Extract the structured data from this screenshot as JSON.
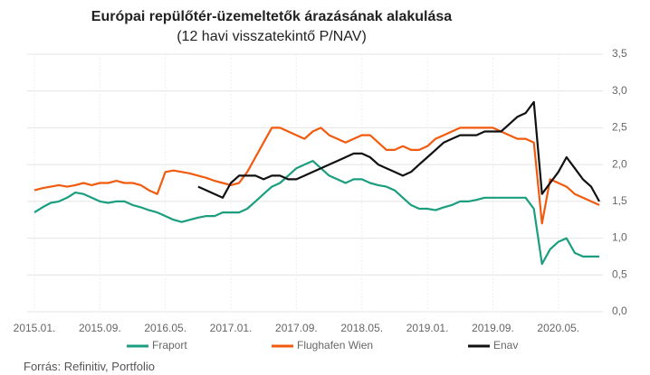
{
  "chart_data": {
    "type": "line",
    "title": "Európai repülőtér-üzemeltetők árazásának alakulása",
    "subtitle": "(12 havi visszatekintő P/NAV)",
    "source": "Forrás: Refinitiv, Portfolio",
    "categories": [
      "2015.01.",
      null,
      null,
      null,
      null,
      null,
      null,
      null,
      "2015.09.",
      null,
      null,
      null,
      null,
      null,
      null,
      null,
      "2016.05.",
      null,
      null,
      null,
      null,
      null,
      null,
      null,
      "2017.01.",
      null,
      null,
      null,
      null,
      null,
      null,
      null,
      "2017.09.",
      null,
      null,
      null,
      null,
      null,
      null,
      null,
      "2018.05.",
      null,
      null,
      null,
      null,
      null,
      null,
      null,
      "2019.01.",
      null,
      null,
      null,
      null,
      null,
      null,
      null,
      "2019.09.",
      null,
      null,
      null,
      null,
      null,
      null,
      null,
      "2020.05.",
      null,
      null,
      null,
      null,
      null
    ],
    "series": [
      {
        "name": "Fraport",
        "color": "#1a9e7f",
        "values": [
          1.35,
          1.42,
          1.48,
          1.5,
          1.55,
          1.62,
          1.6,
          1.55,
          1.5,
          1.48,
          1.5,
          1.5,
          1.45,
          1.42,
          1.38,
          1.35,
          1.3,
          1.25,
          1.22,
          1.25,
          1.28,
          1.3,
          1.3,
          1.35,
          1.35,
          1.35,
          1.4,
          1.5,
          1.6,
          1.7,
          1.75,
          1.85,
          1.95,
          2.0,
          2.05,
          1.95,
          1.85,
          1.8,
          1.75,
          1.8,
          1.8,
          1.75,
          1.72,
          1.7,
          1.65,
          1.55,
          1.45,
          1.4,
          1.4,
          1.38,
          1.42,
          1.45,
          1.5,
          1.5,
          1.52,
          1.55,
          1.55,
          1.55,
          1.55,
          1.55,
          1.55,
          1.4,
          0.65,
          0.85,
          0.95,
          1.0,
          0.8,
          0.75,
          0.75,
          0.75
        ]
      },
      {
        "name": "Flughafen Wien",
        "color": "#f25a0e",
        "values": [
          1.65,
          1.68,
          1.7,
          1.72,
          1.7,
          1.72,
          1.75,
          1.72,
          1.75,
          1.75,
          1.78,
          1.75,
          1.75,
          1.72,
          1.65,
          1.6,
          1.9,
          1.92,
          1.9,
          1.88,
          1.85,
          1.82,
          1.78,
          1.75,
          1.72,
          1.75,
          1.9,
          2.1,
          2.3,
          2.5,
          2.5,
          2.45,
          2.4,
          2.35,
          2.45,
          2.5,
          2.4,
          2.35,
          2.3,
          2.35,
          2.4,
          2.4,
          2.3,
          2.2,
          2.2,
          2.25,
          2.2,
          2.2,
          2.25,
          2.35,
          2.4,
          2.45,
          2.5,
          2.5,
          2.5,
          2.5,
          2.5,
          2.45,
          2.4,
          2.35,
          2.35,
          2.3,
          1.2,
          1.8,
          1.75,
          1.7,
          1.6,
          1.55,
          1.5,
          1.45
        ]
      },
      {
        "name": "Enav",
        "color": "#111111",
        "values": [
          null,
          null,
          null,
          null,
          null,
          null,
          null,
          null,
          null,
          null,
          null,
          null,
          null,
          null,
          null,
          null,
          null,
          null,
          null,
          null,
          1.7,
          1.65,
          1.6,
          1.55,
          1.75,
          1.85,
          1.85,
          1.85,
          1.8,
          1.85,
          1.85,
          1.8,
          1.8,
          1.85,
          1.9,
          1.95,
          2.0,
          2.05,
          2.1,
          2.15,
          2.15,
          2.1,
          2.0,
          1.95,
          1.9,
          1.85,
          1.9,
          2.0,
          2.1,
          2.2,
          2.3,
          2.35,
          2.4,
          2.4,
          2.4,
          2.45,
          2.45,
          2.45,
          2.55,
          2.65,
          2.7,
          2.85,
          1.6,
          1.75,
          1.9,
          2.1,
          1.95,
          1.8,
          1.7,
          1.5
        ]
      }
    ],
    "ylim": [
      0,
      3.5
    ],
    "yticks": [
      {
        "value": 0,
        "label": "0,0"
      },
      {
        "value": 0.5,
        "label": "0,5"
      },
      {
        "value": 1,
        "label": "1,0"
      },
      {
        "value": 1.5,
        "label": "1,5"
      },
      {
        "value": 2,
        "label": "2,0"
      },
      {
        "value": 2.5,
        "label": "2,5"
      },
      {
        "value": 3,
        "label": "3,0"
      },
      {
        "value": 3.5,
        "label": "3,5"
      }
    ],
    "grid": true
  }
}
